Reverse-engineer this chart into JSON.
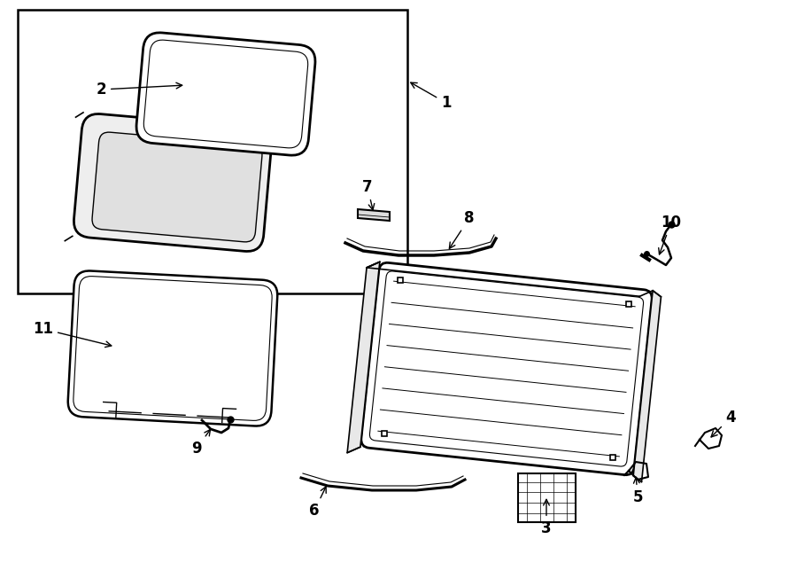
{
  "bg_color": "#ffffff",
  "line_color": "#000000",
  "fig_width": 9.0,
  "fig_height": 6.61,
  "lw_main": 1.5,
  "lw_thin": 0.8,
  "lw_thick": 2.0
}
